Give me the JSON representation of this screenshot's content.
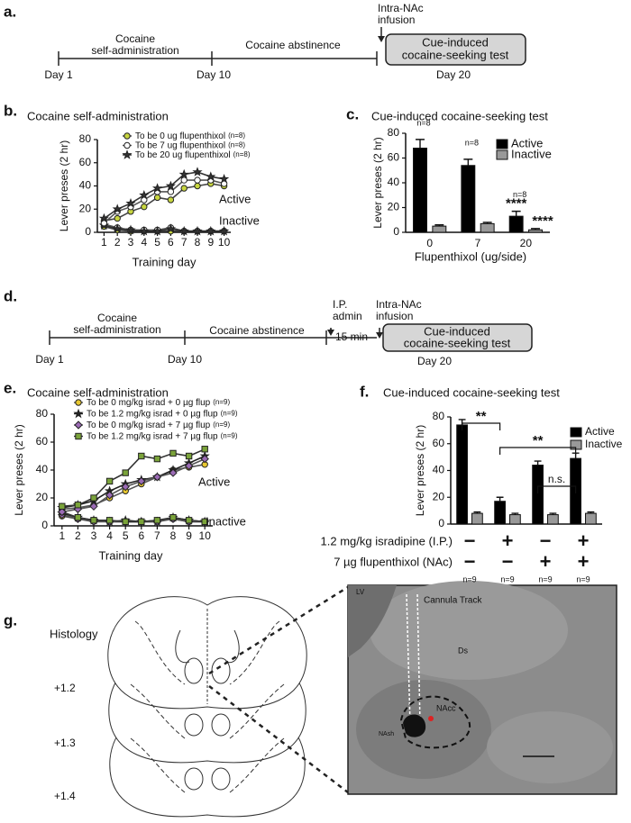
{
  "panel_labels": {
    "a": "a.",
    "b": "b.",
    "c": "c.",
    "d": "d.",
    "e": "e.",
    "f": "f.",
    "g": "g."
  },
  "timeline_a": {
    "phase_1": [
      "Cocaine",
      "self-administration"
    ],
    "phase_2": "Cocaine abstinence",
    "days": [
      "Day 1",
      "Day 10",
      "Day 20"
    ],
    "infusion": [
      "Intra-NAc",
      "infusion"
    ],
    "test": [
      "Cue-induced",
      "cocaine-seeking test"
    ]
  },
  "timeline_d": {
    "phase_1": [
      "Cocaine",
      "self-administration"
    ],
    "phase_2": "Cocaine abstinence",
    "days": [
      "Day 1",
      "Day 10",
      "Day 20"
    ],
    "ip": [
      "I.P.",
      "admin"
    ],
    "delay": "15 min",
    "infusion": [
      "Intra-NAc",
      "infusion"
    ],
    "test": [
      "Cue-induced",
      "cocaine-seeking test"
    ]
  },
  "chart_data": [
    {
      "type": "line",
      "title": "Cocaine self-administration",
      "xlabel": "Training day",
      "ylabel": "Lever preses (2 hr)",
      "x": [
        1,
        2,
        3,
        4,
        5,
        6,
        7,
        8,
        9,
        10
      ],
      "xlim": [
        0.5,
        10.5
      ],
      "xticks": [
        1,
        2,
        3,
        4,
        5,
        6,
        7,
        8,
        9,
        10
      ],
      "ylim": [
        0,
        80
      ],
      "yticks": [
        0,
        20,
        40,
        60,
        80
      ],
      "annotations": [
        "Active",
        "Inactive"
      ],
      "series": [
        {
          "name": "To be 0 ug flupenthixol",
          "n": "(n=8)",
          "color": "#c8d640",
          "line_color": "#444444",
          "marker": "circle",
          "values": [
            10,
            12,
            18,
            22,
            30,
            28,
            38,
            40,
            42,
            40
          ],
          "inactive_values": [
            5,
            2,
            1,
            1,
            1,
            1,
            1,
            1,
            1,
            1
          ]
        },
        {
          "name": "To be 7 ug flupenthixol",
          "n": "(n=8)",
          "color": "#ffffff",
          "line_color": "#555555",
          "marker": "circle",
          "values": [
            8,
            18,
            22,
            28,
            35,
            35,
            45,
            45,
            45,
            42
          ],
          "inactive_values": [
            7,
            4,
            2,
            2,
            2,
            4,
            1,
            1,
            1,
            1
          ]
        },
        {
          "name": "To be 20 ug flupenthixol",
          "n": "(n=8)",
          "color": "#333333",
          "line_color": "#333333",
          "marker": "star",
          "values": [
            12,
            20,
            25,
            32,
            38,
            40,
            50,
            52,
            48,
            46
          ],
          "inactive_values": [
            6,
            3,
            2,
            1,
            1,
            3,
            1,
            1,
            1,
            1
          ]
        }
      ]
    },
    {
      "type": "bar",
      "title": "Cue-induced cocaine-seeking test",
      "xlabel": "Flupenthixol (ug/side)",
      "ylabel": "Lever preses (2 hr)",
      "categories": [
        "0",
        "7",
        "20"
      ],
      "ylim": [
        0,
        80
      ],
      "yticks": [
        0,
        20,
        40,
        60,
        80
      ],
      "n_labels": [
        "n=8",
        "n=8",
        "n=8"
      ],
      "series": [
        {
          "name": "Active",
          "color": "#000000",
          "values": [
            68,
            54,
            13
          ],
          "errors": [
            7,
            5,
            4
          ],
          "stars": [
            null,
            null,
            "****"
          ]
        },
        {
          "name": "Inactive",
          "color": "#999999",
          "values": [
            5,
            7,
            2
          ],
          "errors": [
            1,
            1,
            1
          ],
          "stars": [
            null,
            null,
            "****"
          ]
        }
      ]
    },
    {
      "type": "line",
      "title": "Cocaine self-administration",
      "xlabel": "Training day",
      "ylabel": "Lever preses (2 hr)",
      "x": [
        1,
        2,
        3,
        4,
        5,
        6,
        7,
        8,
        9,
        10
      ],
      "xlim": [
        0.5,
        10.5
      ],
      "xticks": [
        1,
        2,
        3,
        4,
        5,
        6,
        7,
        8,
        9,
        10
      ],
      "ylim": [
        0,
        80
      ],
      "yticks": [
        0,
        20,
        40,
        60,
        80
      ],
      "annotations": [
        "Active",
        "Inactive"
      ],
      "series": [
        {
          "name": "To be 0 mg/kg israd + 0 µg flup",
          "n": "(n=9)",
          "color": "#e8c830",
          "line_color": "#555555",
          "marker": "circle",
          "values": [
            12,
            13,
            15,
            20,
            25,
            30,
            35,
            40,
            42,
            44
          ],
          "inactive_values": [
            7,
            5,
            4,
            3,
            3,
            3,
            4,
            5,
            3,
            3
          ]
        },
        {
          "name": "To be 1.2 mg/kg israd + 0 µg flup",
          "n": "(n=9)",
          "color": "#222222",
          "line_color": "#222222",
          "marker": "star",
          "values": [
            13,
            15,
            18,
            25,
            30,
            33,
            35,
            40,
            45,
            50
          ],
          "inactive_values": [
            9,
            6,
            4,
            3,
            4,
            3,
            3,
            6,
            4,
            3
          ]
        },
        {
          "name": "To be 0 mg/kg israd + 7 µg flup",
          "n": "(n=9)",
          "color": "#9b6bb5",
          "line_color": "#555555",
          "marker": "diamond",
          "values": [
            10,
            12,
            14,
            22,
            28,
            32,
            35,
            38,
            43,
            48
          ],
          "inactive_values": [
            8,
            5,
            3,
            3,
            3,
            3,
            3,
            5,
            3,
            3
          ]
        },
        {
          "name": "To be 1.2 mg/kg israd + 7 µg flup",
          "n": "(n=9)",
          "color": "#7aa33a",
          "line_color": "#333333",
          "marker": "square",
          "values": [
            14,
            15,
            20,
            32,
            38,
            50,
            48,
            52,
            50,
            55
          ],
          "inactive_values": [
            10,
            6,
            4,
            4,
            3,
            3,
            4,
            6,
            4,
            3
          ]
        }
      ]
    },
    {
      "type": "bar",
      "title": "Cue-induced cocaine-seeking test",
      "ylabel": "Lever preses (2 hr)",
      "categories": [
        null,
        null,
        null,
        null
      ],
      "ylim": [
        0,
        80
      ],
      "yticks": [
        0,
        20,
        40,
        60,
        80
      ],
      "n_labels": [
        "n=9",
        "n=9",
        "n=9",
        "n=9"
      ],
      "conditions": [
        {
          "label": "1.2 mg/kg isradipine (I.P.)",
          "signs": [
            "−",
            "+",
            "−",
            "+"
          ]
        },
        {
          "label": "7 µg flupenthixol (NAc)",
          "signs": [
            "−",
            "−",
            "+",
            "+"
          ]
        }
      ],
      "comparisons": [
        {
          "from": 0,
          "to": 1,
          "label": "**"
        },
        {
          "from": 1,
          "to": 3,
          "label": "**"
        },
        {
          "from": 2,
          "to": 3,
          "label": "n.s."
        }
      ],
      "series": [
        {
          "name": "Active",
          "color": "#000000",
          "values": [
            74,
            17,
            44,
            49
          ],
          "errors": [
            4,
            3,
            3,
            4
          ]
        },
        {
          "name": "Inactive",
          "color": "#999999",
          "values": [
            8,
            7,
            7,
            8
          ],
          "errors": [
            1,
            1,
            1,
            1
          ]
        }
      ]
    }
  ],
  "histology": {
    "title": "Histology",
    "levels": [
      "+1.2",
      "+1.3",
      "+1.4"
    ],
    "image_labels": {
      "lv": "LV",
      "track": "Cannula Track",
      "ds": "Ds",
      "nacc": "NAcc",
      "nash": "NAsh"
    }
  }
}
